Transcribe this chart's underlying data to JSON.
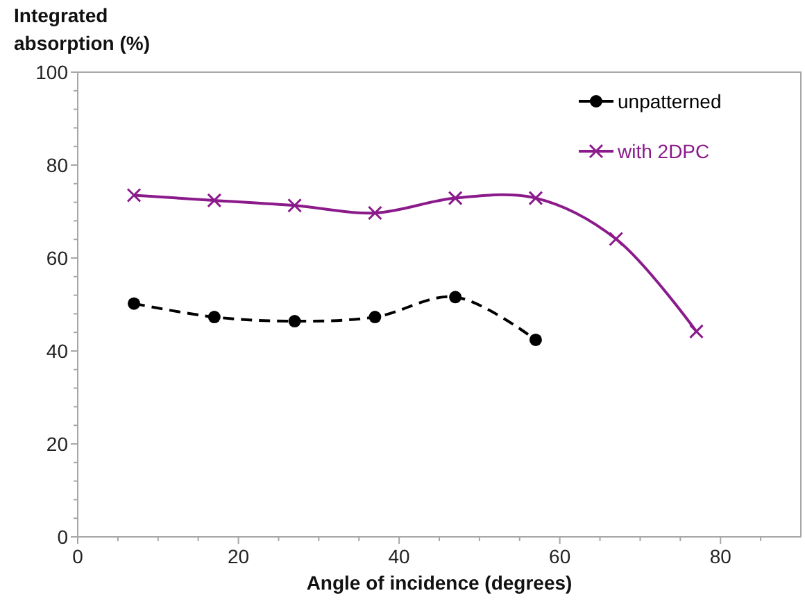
{
  "chart_data": {
    "type": "line",
    "xlabel": "Angle of incidence (degrees)",
    "ylabel": "Integrated absorption (%)",
    "xlim": [
      0,
      90
    ],
    "ylim": [
      0,
      100
    ],
    "xticks": [
      0,
      {
        "value": 5,
        "label": null
      },
      {
        "value": 10,
        "label": null
      },
      {
        "value": 15,
        "label": null
      },
      20,
      {
        "value": 25,
        "label": null
      },
      {
        "value": 30,
        "label": null
      },
      {
        "value": 35,
        "label": null
      },
      40,
      {
        "value": 45,
        "label": null
      },
      {
        "value": 50,
        "label": null
      },
      {
        "value": 55,
        "label": null
      },
      60,
      {
        "value": 65,
        "label": null
      },
      {
        "value": 70,
        "label": null
      },
      {
        "value": 75,
        "label": null
      },
      80,
      {
        "value": 85,
        "label": null
      }
    ],
    "yticks": [
      0,
      {
        "value": 4,
        "label": null
      },
      {
        "value": 8,
        "label": null
      },
      {
        "value": 12,
        "label": null
      },
      {
        "value": 16,
        "label": null
      },
      20,
      {
        "value": 24,
        "label": null
      },
      {
        "value": 28,
        "label": null
      },
      {
        "value": 32,
        "label": null
      },
      {
        "value": 36,
        "label": null
      },
      40,
      {
        "value": 44,
        "label": null
      },
      {
        "value": 48,
        "label": null
      },
      {
        "value": 52,
        "label": null
      },
      {
        "value": 56,
        "label": null
      },
      60,
      {
        "value": 64,
        "label": null
      },
      {
        "value": 68,
        "label": null
      },
      {
        "value": 72,
        "label": null
      },
      {
        "value": 76,
        "label": null
      },
      80,
      {
        "value": 84,
        "label": null
      },
      {
        "value": 88,
        "label": null
      },
      {
        "value": 92,
        "label": null
      },
      {
        "value": 96,
        "label": null
      },
      100
    ],
    "grid": false,
    "legend": "top right",
    "series": [
      {
        "name": "unpatterned",
        "color": "#000000",
        "marker": "circle",
        "line_style": "dashed",
        "x": [
          7,
          17,
          27,
          37,
          47,
          57
        ],
        "values": [
          50.2,
          47.3,
          46.4,
          47.3,
          51.6,
          42.4
        ]
      },
      {
        "name": "with 2DPC",
        "color": "#8b1a8b",
        "marker": "cross",
        "line_style": "solid",
        "x": [
          7,
          17,
          27,
          37,
          47,
          57,
          67,
          77
        ],
        "values": [
          73.5,
          72.4,
          71.3,
          69.7,
          72.9,
          72.9,
          64.1,
          44.2
        ]
      }
    ]
  }
}
